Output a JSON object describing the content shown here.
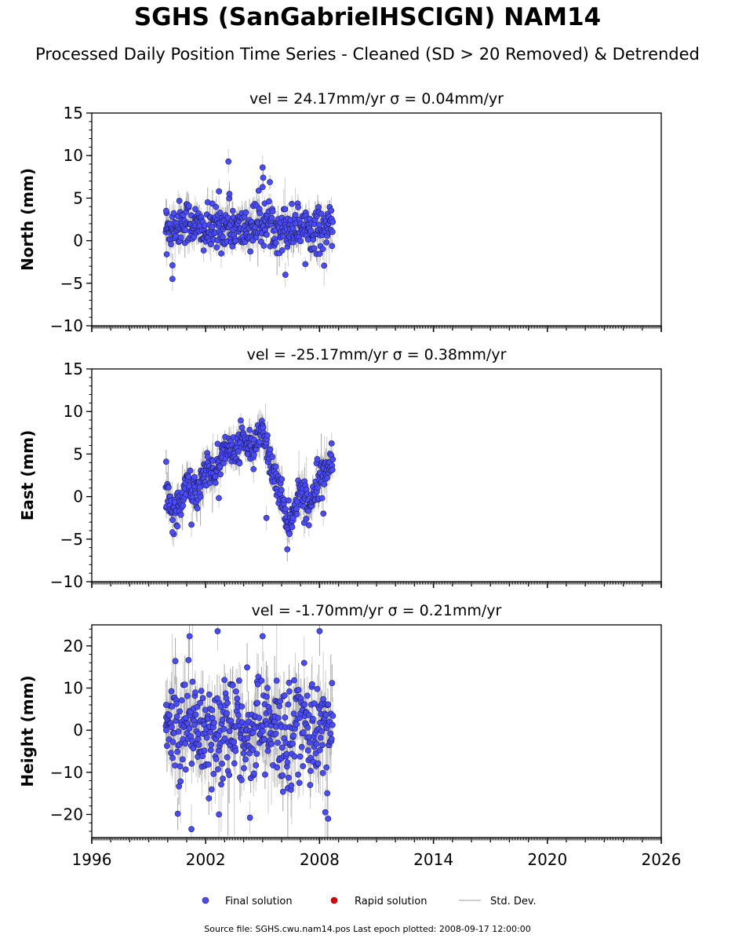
{
  "header": {
    "title": "SGHS (SanGabrielHSCIGN) NAM14",
    "subtitle": "Processed Daily Position Time Series - Cleaned (SD > 20 Removed) & Detrended"
  },
  "footer": {
    "source_text": "Source file: SGHS.cwu.nam14.pos  Last epoch plotted: 2008-09-17 12:00:00"
  },
  "colors": {
    "final": "#4a4aff",
    "rapid": "#e00000",
    "std": "#bdbdbd"
  },
  "chart_data": [
    {
      "type": "scatter",
      "panel": "north",
      "title": "vel = 24.17mm/yr   σ = 0.04mm/yr",
      "ylabel": "North (mm)",
      "xlim": [
        1996,
        2026
      ],
      "ylim": [
        -10,
        15
      ],
      "yticks": [
        -10,
        -5,
        0,
        5,
        10,
        15
      ],
      "ytick_labels": [
        "−10",
        "−5",
        "0",
        "5",
        "10",
        "15"
      ],
      "data_range": [
        1999.9,
        2008.71
      ],
      "baseline_knots": [
        [
          1999.9,
          1.4
        ],
        [
          2001.0,
          2.4
        ],
        [
          2002.0,
          1.0
        ],
        [
          2003.0,
          1.8
        ],
        [
          2004.0,
          1.2
        ],
        [
          2005.0,
          2.2
        ],
        [
          2006.0,
          1.5
        ],
        [
          2007.0,
          1.8
        ],
        [
          2008.0,
          1.2
        ],
        [
          2008.71,
          1.8
        ]
      ],
      "noise": 1.3,
      "std": 1.1,
      "outliers": [
        [
          1999.92,
          3.5
        ],
        [
          1999.95,
          -1.6
        ],
        [
          2000.25,
          -4.5
        ],
        [
          2000.25,
          -2.9
        ],
        [
          2003.2,
          9.3
        ],
        [
          2005.0,
          8.6
        ],
        [
          2005.03,
          7.4
        ],
        [
          2005.0,
          6.3
        ],
        [
          2006.2,
          -4.0
        ],
        [
          2003.25,
          5.5
        ],
        [
          2002.7,
          5.8
        ]
      ]
    },
    {
      "type": "scatter",
      "panel": "east",
      "title": "vel = -25.17mm/yr   σ = 0.38mm/yr",
      "ylabel": "East (mm)",
      "xlim": [
        1996,
        2026
      ],
      "ylim": [
        -10,
        15
      ],
      "yticks": [
        -10,
        -5,
        0,
        5,
        10,
        15
      ],
      "ytick_labels": [
        "−10",
        "−5",
        "0",
        "5",
        "10",
        "15"
      ],
      "data_range": [
        1999.9,
        2008.71
      ],
      "baseline_knots": [
        [
          1999.9,
          0.5
        ],
        [
          2000.3,
          -2.0
        ],
        [
          2001.0,
          1.5
        ],
        [
          2001.5,
          0.5
        ],
        [
          2002.0,
          3.5
        ],
        [
          2002.5,
          2.5
        ],
        [
          2003.0,
          6.0
        ],
        [
          2003.5,
          5.0
        ],
        [
          2004.0,
          7.0
        ],
        [
          2004.5,
          5.0
        ],
        [
          2005.0,
          8.0
        ],
        [
          2005.5,
          3.0
        ],
        [
          2006.0,
          0.0
        ],
        [
          2006.4,
          -3.5
        ],
        [
          2007.0,
          1.0
        ],
        [
          2007.4,
          -1.5
        ],
        [
          2008.0,
          3.0
        ],
        [
          2008.71,
          4.0
        ]
      ],
      "noise": 1.0,
      "std": 1.1,
      "outliers": [
        [
          1999.92,
          4.1
        ],
        [
          2000.25,
          -4.2
        ],
        [
          2001.25,
          -3.3
        ],
        [
          2006.3,
          -6.2
        ],
        [
          2005.2,
          -2.5
        ],
        [
          2008.2,
          -2.0
        ]
      ]
    },
    {
      "type": "scatter",
      "panel": "height",
      "title": "vel = -1.70mm/yr   σ = 0.21mm/yr",
      "ylabel": "Height (mm)",
      "xlim": [
        1996,
        2026
      ],
      "ylim": [
        -25.5,
        25
      ],
      "yticks": [
        -20,
        -10,
        0,
        10,
        20
      ],
      "ytick_labels": [
        "−20",
        "−10",
        "0",
        "10",
        "20"
      ],
      "data_range": [
        1999.9,
        2008.71
      ],
      "baseline_knots": [
        [
          1999.9,
          0.0
        ],
        [
          2001.0,
          2.0
        ],
        [
          2002.0,
          0.0
        ],
        [
          2003.0,
          1.0
        ],
        [
          2004.0,
          -1.0
        ],
        [
          2005.0,
          1.0
        ],
        [
          2006.0,
          -2.0
        ],
        [
          2007.0,
          2.0
        ],
        [
          2008.0,
          0.0
        ],
        [
          2008.71,
          1.0
        ]
      ],
      "noise": 6.5,
      "std": 4.5,
      "outliers": [
        [
          1999.92,
          6.0
        ],
        [
          1999.92,
          0.0
        ],
        [
          2001.25,
          -23.5
        ],
        [
          2001.15,
          22.3
        ],
        [
          2002.7,
          -20.0
        ],
        [
          2005.0,
          22.3
        ],
        [
          2008.0,
          23.5
        ],
        [
          2008.45,
          -21.0
        ],
        [
          2008.3,
          -19.5
        ]
      ]
    }
  ],
  "xaxis": {
    "ticks": [
      1996,
      2002,
      2008,
      2014,
      2020,
      2026
    ],
    "tick_labels": [
      "1996",
      "2002",
      "2008",
      "2014",
      "2020",
      "2026"
    ]
  },
  "legend": {
    "placement": "bottom-center",
    "final_label": "Final solution",
    "rapid_label": "Rapid solution",
    "std_label": "Std. Dev."
  }
}
